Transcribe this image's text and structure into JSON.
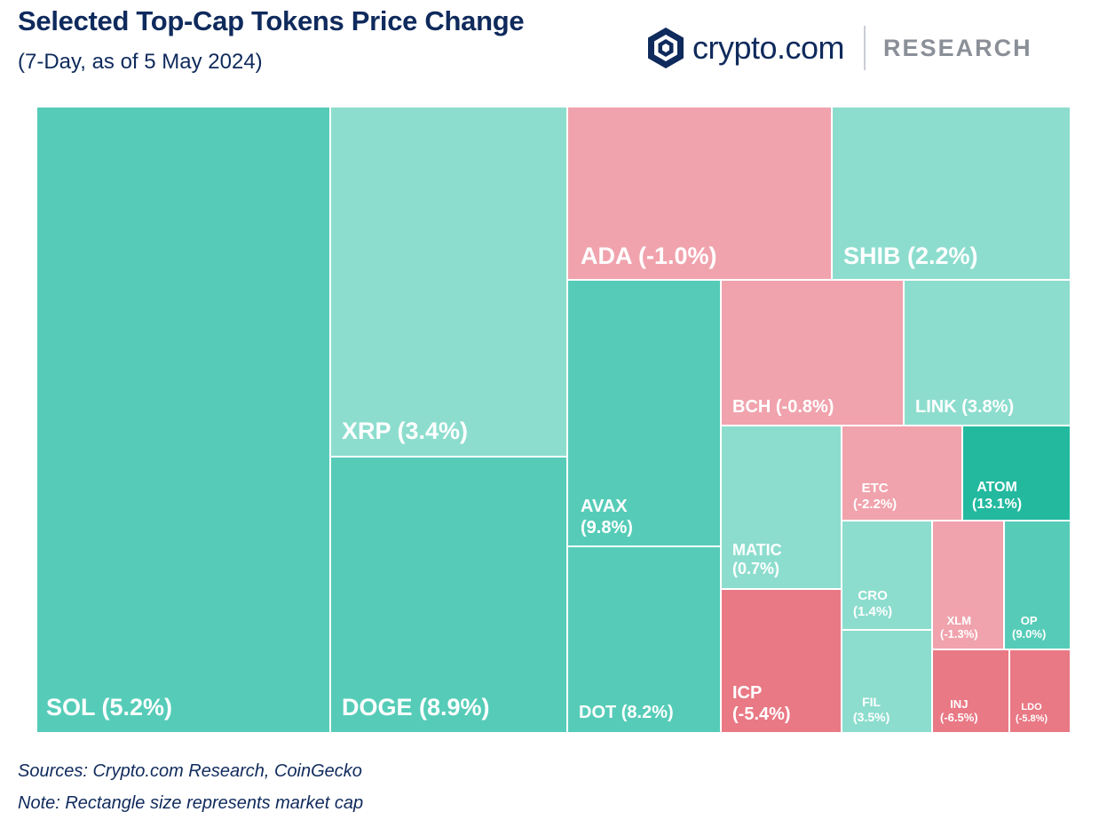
{
  "header": {
    "title": "Selected Top-Cap Tokens Price Change",
    "subtitle": "(7-Day, as of 5 May 2024)"
  },
  "brand": {
    "name": "crypto.com",
    "research": "RESEARCH",
    "logo_icon": "crypto-com-shield-icon"
  },
  "footer": {
    "sources": "Sources: Crypto.com Research, CoinGecko",
    "note": "Note: Rectangle size represents market cap"
  },
  "colors": {
    "title": "#0f2a5c",
    "strong_positive": "#22b99f",
    "positive": "#56ccb8",
    "light_positive": "#8dddce",
    "light_negative": "#f0a3ad",
    "negative": "#e97985"
  },
  "chart_data": {
    "type": "treemap",
    "size_measure": "market cap",
    "color_measure": "7-day price change (%)",
    "items": [
      {
        "token": "SOL",
        "change": 5.2,
        "label": "SOL (5.2%)"
      },
      {
        "token": "XRP",
        "change": 3.4,
        "label": "XRP (3.4%)"
      },
      {
        "token": "DOGE",
        "change": 8.9,
        "label": "DOGE (8.9%)"
      },
      {
        "token": "ADA",
        "change": -1.0,
        "label": "ADA (-1.0%)"
      },
      {
        "token": "SHIB",
        "change": 2.2,
        "label": "SHIB (2.2%)"
      },
      {
        "token": "AVAX",
        "change": 9.8,
        "label": "AVAX\n(9.8%)"
      },
      {
        "token": "DOT",
        "change": 8.2,
        "label": "DOT (8.2%)"
      },
      {
        "token": "BCH",
        "change": -0.8,
        "label": "BCH (-0.8%)"
      },
      {
        "token": "LINK",
        "change": 3.8,
        "label": "LINK (3.8%)"
      },
      {
        "token": "MATIC",
        "change": 0.7,
        "label": "MATIC\n(0.7%)"
      },
      {
        "token": "ICP",
        "change": -5.4,
        "label": "ICP\n(-5.4%)"
      },
      {
        "token": "ETC",
        "change": -2.2,
        "label": "ETC\n(-2.2%)"
      },
      {
        "token": "ATOM",
        "change": 13.1,
        "label": "ATOM\n(13.1%)"
      },
      {
        "token": "CRO",
        "change": 1.4,
        "label": "CRO\n(1.4%)"
      },
      {
        "token": "FIL",
        "change": 3.5,
        "label": "FIL\n(3.5%)"
      },
      {
        "token": "XLM",
        "change": -1.3,
        "label": "XLM\n(-1.3%)"
      },
      {
        "token": "OP",
        "change": 9.0,
        "label": "OP\n(9.0%)"
      },
      {
        "token": "INJ",
        "change": -6.5,
        "label": "INJ\n(-6.5%)"
      },
      {
        "token": "LDO",
        "change": -5.8,
        "label": "LDO\n(-5.8%)"
      }
    ]
  }
}
